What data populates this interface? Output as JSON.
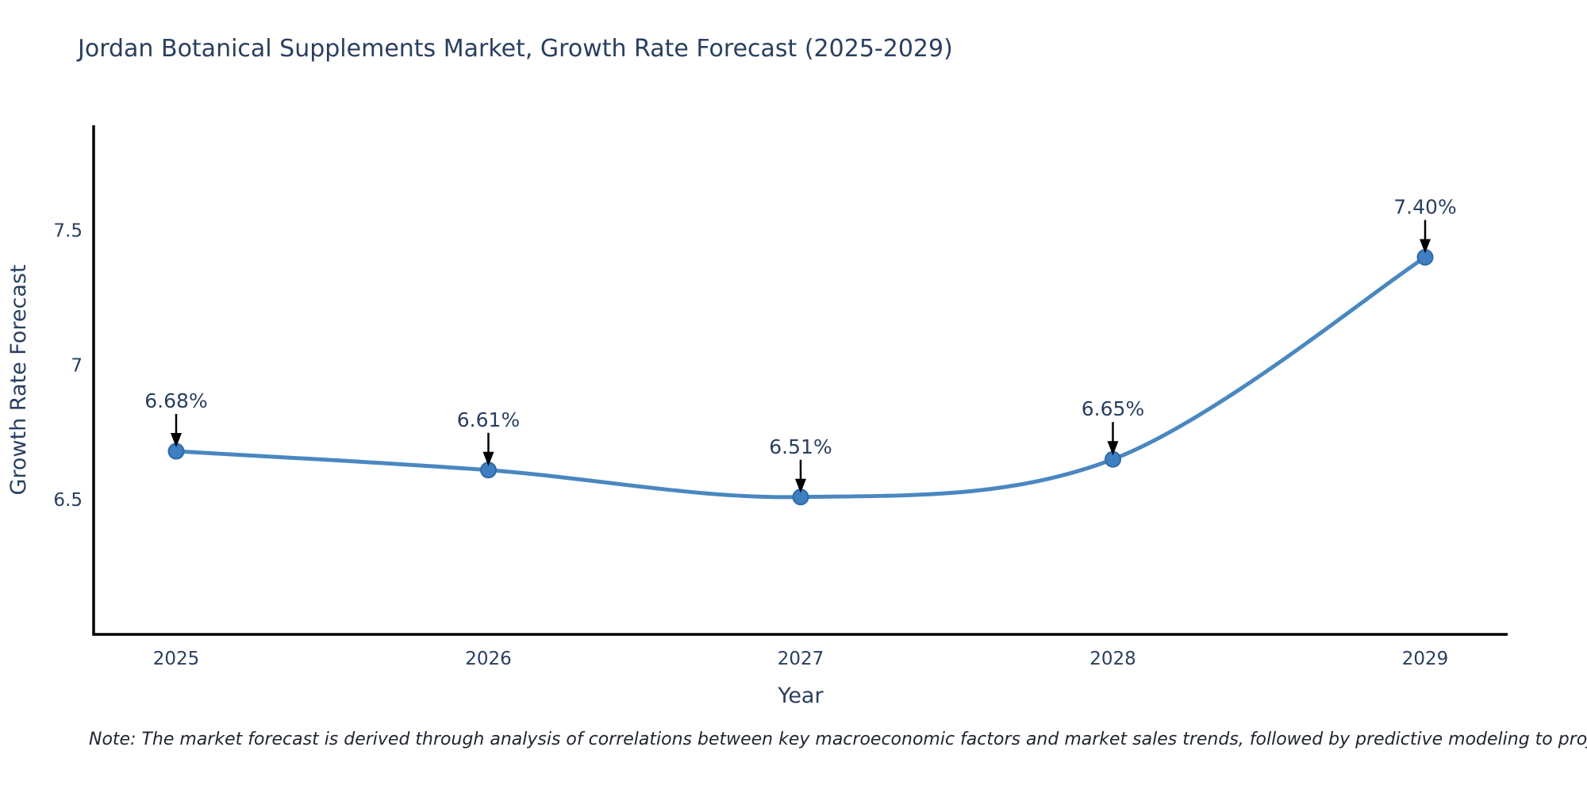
{
  "chart_data": {
    "type": "line",
    "title": "Jordan Botanical Supplements Market, Growth Rate Forecast (2025-2029)",
    "categories": [
      "2025",
      "2026",
      "2027",
      "2028",
      "2029"
    ],
    "values": [
      6.68,
      6.61,
      6.51,
      6.65,
      7.4
    ],
    "point_labels": [
      "6.68%",
      "6.61%",
      "6.51%",
      "6.65%",
      "7.40%"
    ],
    "xlabel": "Year",
    "ylabel": "Growth Rate Forecast",
    "yticks": [
      6.5,
      7,
      7.5
    ],
    "ytick_labels": [
      "6.5",
      "7",
      "7.5"
    ],
    "ylim": [
      6.0,
      7.89
    ],
    "grid": false,
    "legend": false,
    "smooth": true,
    "line_color": "#4a87c0",
    "marker_color": "#3d7fc1",
    "marker_edge_color": "#2f6ba8",
    "axis_color": "#000000",
    "text_color": "#2a3f5f",
    "annotation_arrow_color": "#000000",
    "note": "Note: The market forecast is derived through analysis of correlations between key macroeconomic factors and market sales trends, followed by predictive modeling to project future sales"
  }
}
